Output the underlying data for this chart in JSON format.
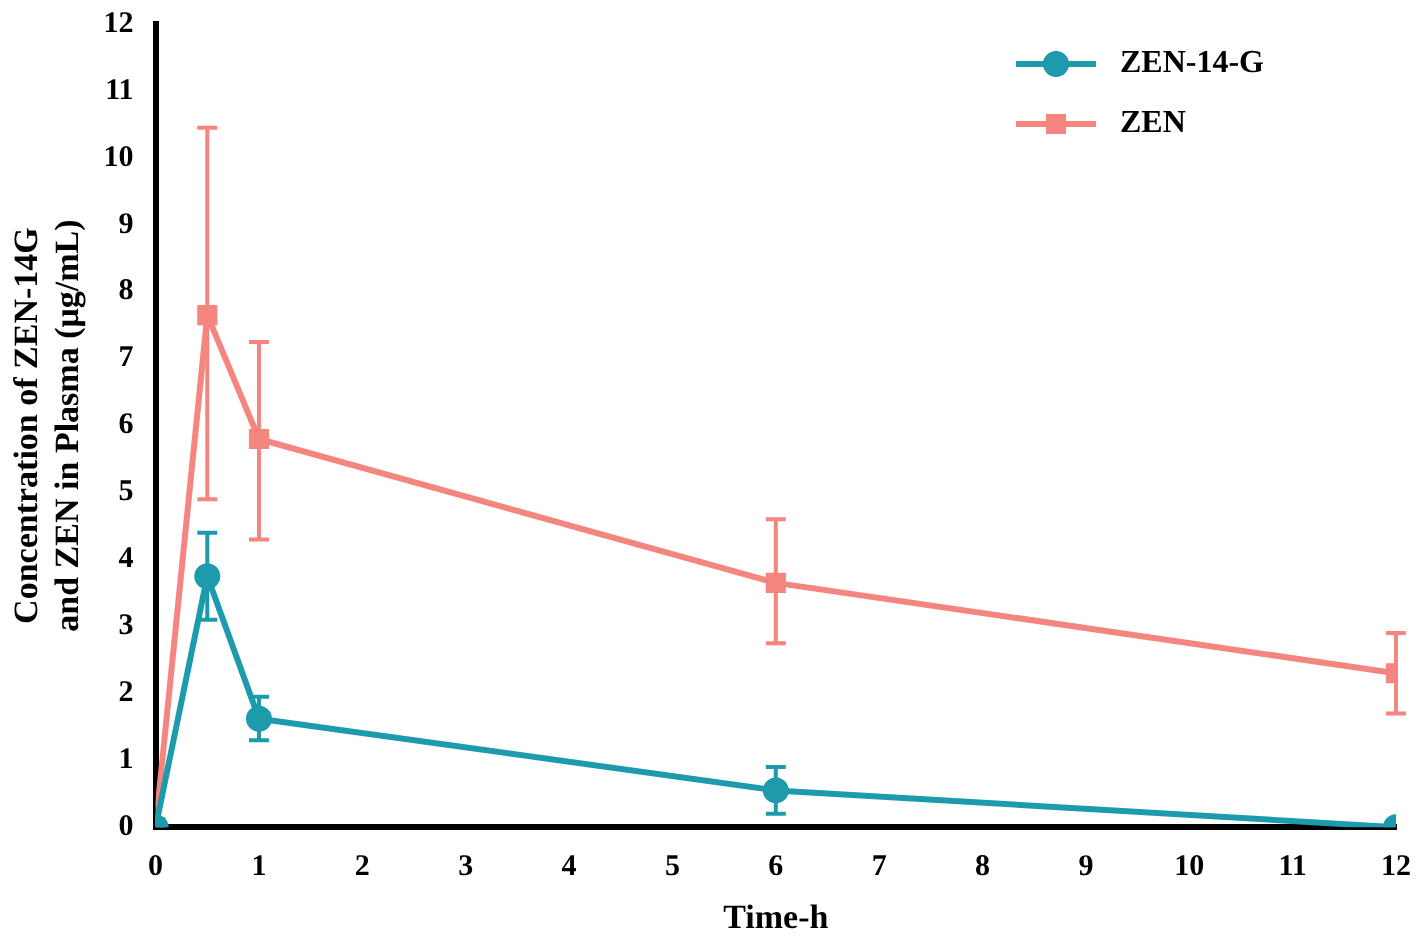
{
  "chart_data": {
    "type": "line",
    "xlabel": "Time-h",
    "ylabel": "Concentration of ZEN-14G\nand ZEN in Plasma (μg/mL)",
    "x": [
      0,
      0.5,
      1,
      6,
      12
    ],
    "xlim": [
      0,
      12
    ],
    "xticks": [
      0,
      1,
      2,
      3,
      4,
      5,
      6,
      7,
      8,
      9,
      10,
      11,
      12
    ],
    "ylim": [
      0,
      12
    ],
    "yticks": [
      0,
      1,
      2,
      3,
      4,
      5,
      6,
      7,
      8,
      9,
      10,
      11,
      12
    ],
    "grid": false,
    "legend": "top right",
    "line_style": "solid",
    "series": [
      {
        "name": "ZEN-14-G",
        "color": "#1e9aad",
        "marker": "circle",
        "values": [
          0,
          3.75,
          1.62,
          0.55,
          0
        ],
        "errors": [
          null,
          [
            3.1,
            4.4
          ],
          [
            1.3,
            1.95
          ],
          [
            0.2,
            0.9
          ],
          null
        ]
      },
      {
        "name": "ZEN",
        "color": "#f4857f",
        "marker": "square",
        "values": [
          0,
          7.65,
          5.8,
          3.65,
          2.3
        ],
        "errors": [
          null,
          [
            4.9,
            10.45
          ],
          [
            4.3,
            7.25
          ],
          [
            2.75,
            4.6
          ],
          [
            1.7,
            2.9
          ]
        ]
      }
    ]
  }
}
